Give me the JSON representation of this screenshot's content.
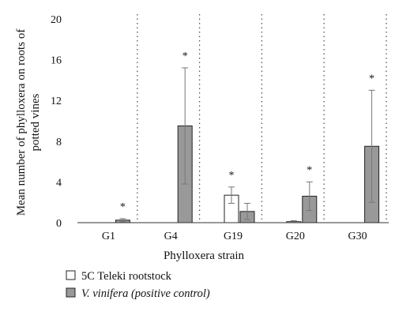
{
  "chart_data": {
    "type": "bar",
    "xlabel": "Phylloxera strain",
    "ylabel": "Mean number of phylloxera on roots of potted vines",
    "ylabel_lines": [
      "Mean number of phylloxera on roots of",
      "potted vines"
    ],
    "ylim": [
      0,
      20
    ],
    "yticks": [
      0,
      4,
      8,
      12,
      16,
      20
    ],
    "categories": [
      "G1",
      "G4",
      "G19",
      "G20",
      "G30"
    ],
    "series": [
      {
        "name": "5C Teleki rootstock",
        "color": "#ffffff",
        "values": [
          0,
          0,
          2.7,
          0.1,
          0
        ],
        "error": [
          0,
          0,
          0.8,
          0.1,
          0
        ]
      },
      {
        "name": "V. vinifera (positive control)",
        "color": "#999999",
        "values": [
          0.25,
          9.5,
          1.1,
          2.6,
          7.5
        ],
        "error": [
          0.15,
          5.7,
          0.8,
          1.4,
          5.5
        ]
      }
    ],
    "significance": [
      "*",
      "*",
      "*",
      "*",
      "*"
    ],
    "grid": "dotted vertical separators between groups",
    "legend": "bottom-left"
  }
}
